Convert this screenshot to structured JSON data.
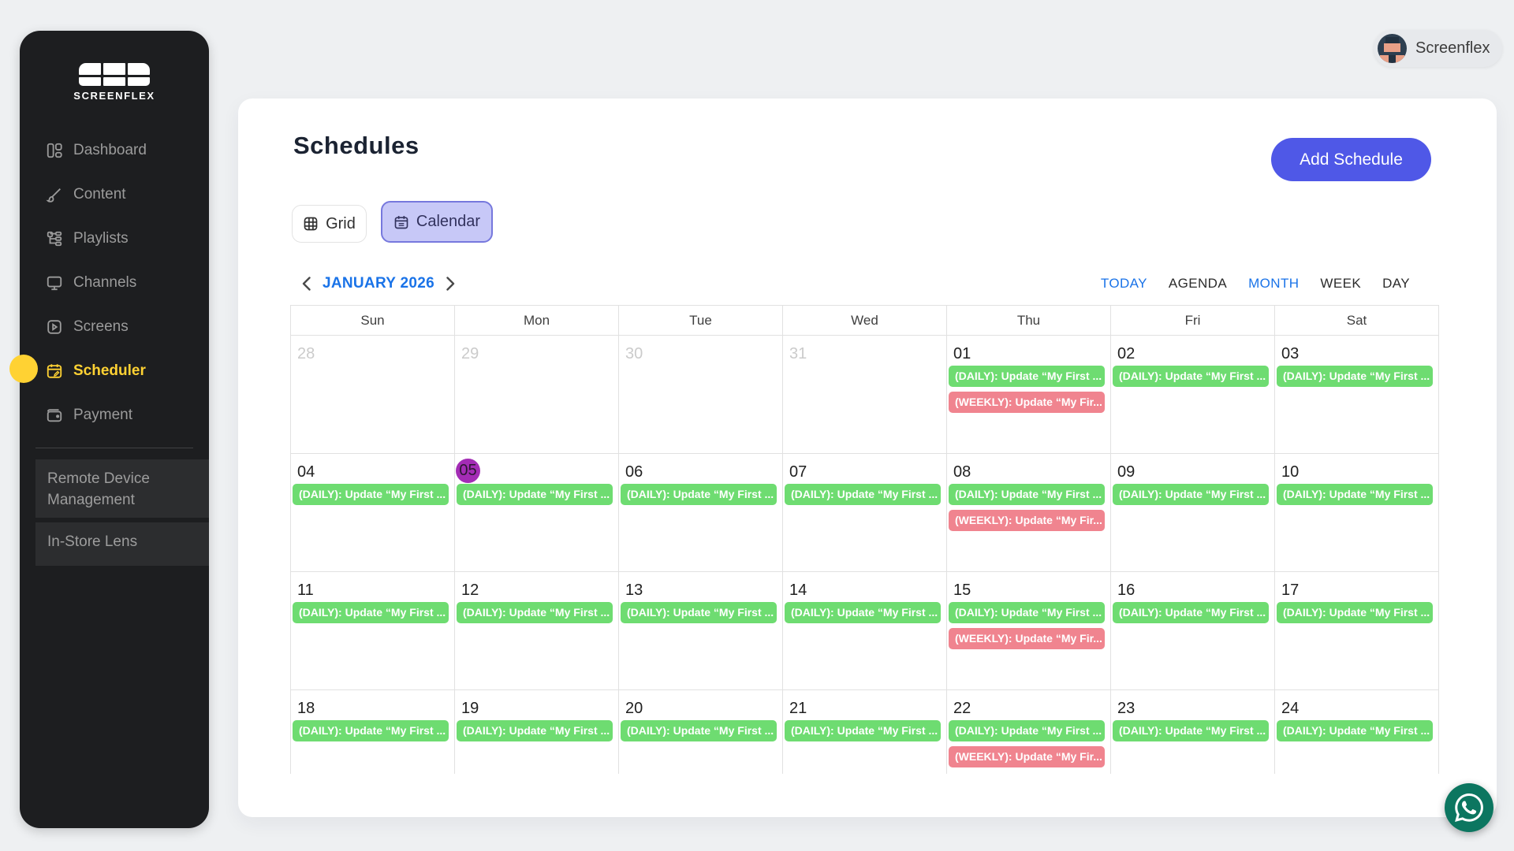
{
  "sidebar": {
    "logo_text": "SCREENFLEX",
    "items": [
      {
        "label": "Dashboard",
        "icon": "dashboard-icon",
        "active": false
      },
      {
        "label": "Content",
        "icon": "brush-icon",
        "active": false
      },
      {
        "label": "Playlists",
        "icon": "playlist-tree-icon",
        "active": false
      },
      {
        "label": "Channels",
        "icon": "monitor-icon",
        "active": false
      },
      {
        "label": "Screens",
        "icon": "play-square-icon",
        "active": false
      },
      {
        "label": "Scheduler",
        "icon": "calendar-edit-icon",
        "active": true
      },
      {
        "label": "Payment",
        "icon": "wallet-icon",
        "active": false
      }
    ],
    "sections": [
      {
        "label": "Remote Device Management"
      },
      {
        "label": "In-Store Lens"
      }
    ]
  },
  "header": {
    "user_name": "Screenflex"
  },
  "main": {
    "title": "Schedules",
    "add_button_label": "Add Schedule",
    "view_toggle": {
      "grid_label": "Grid",
      "calendar_label": "Calendar",
      "selected": "Calendar"
    }
  },
  "calendar": {
    "nav_label": "JANUARY 2026",
    "views": [
      {
        "label": "TODAY",
        "active": true
      },
      {
        "label": "AGENDA",
        "active": false
      },
      {
        "label": "MONTH",
        "active": true
      },
      {
        "label": "WEEK",
        "active": false
      },
      {
        "label": "DAY",
        "active": false
      }
    ],
    "day_headers": [
      "Sun",
      "Mon",
      "Tue",
      "Wed",
      "Thu",
      "Fri",
      "Sat"
    ],
    "event_labels": {
      "daily": "(DAILY): Update “My First ...",
      "weekly": "(WEEKLY): Update “My Fir..."
    },
    "event_colors": {
      "daily": "#6edc71",
      "weekly": "#f0848f"
    },
    "today_color": "#a32cb5",
    "weeks": [
      {
        "days": [
          {
            "date": "28",
            "muted": true
          },
          {
            "date": "29",
            "muted": true
          },
          {
            "date": "30",
            "muted": true
          },
          {
            "date": "31",
            "muted": true
          },
          {
            "date": "01",
            "events": [
              "daily",
              "weekly"
            ]
          },
          {
            "date": "02",
            "events": [
              "daily"
            ]
          },
          {
            "date": "03",
            "events": [
              "daily"
            ]
          }
        ]
      },
      {
        "days": [
          {
            "date": "04",
            "events": [
              "daily"
            ]
          },
          {
            "date": "05",
            "today": true,
            "events": [
              "daily"
            ]
          },
          {
            "date": "06",
            "events": [
              "daily"
            ]
          },
          {
            "date": "07",
            "events": [
              "daily"
            ]
          },
          {
            "date": "08",
            "events": [
              "daily",
              "weekly"
            ]
          },
          {
            "date": "09",
            "events": [
              "daily"
            ]
          },
          {
            "date": "10",
            "events": [
              "daily"
            ]
          }
        ]
      },
      {
        "days": [
          {
            "date": "11",
            "events": [
              "daily"
            ]
          },
          {
            "date": "12",
            "events": [
              "daily"
            ]
          },
          {
            "date": "13",
            "events": [
              "daily"
            ]
          },
          {
            "date": "14",
            "events": [
              "daily"
            ]
          },
          {
            "date": "15",
            "events": [
              "daily",
              "weekly"
            ]
          },
          {
            "date": "16",
            "events": [
              "daily"
            ]
          },
          {
            "date": "17",
            "events": [
              "daily"
            ]
          }
        ]
      },
      {
        "days": [
          {
            "date": "18",
            "events": [
              "daily"
            ]
          },
          {
            "date": "19",
            "events": [
              "daily"
            ]
          },
          {
            "date": "20",
            "events": [
              "daily"
            ]
          },
          {
            "date": "21",
            "events": [
              "daily"
            ]
          },
          {
            "date": "22",
            "events": [
              "daily",
              "weekly"
            ]
          },
          {
            "date": "23",
            "events": [
              "daily"
            ]
          },
          {
            "date": "24",
            "events": [
              "daily"
            ]
          }
        ]
      }
    ]
  }
}
